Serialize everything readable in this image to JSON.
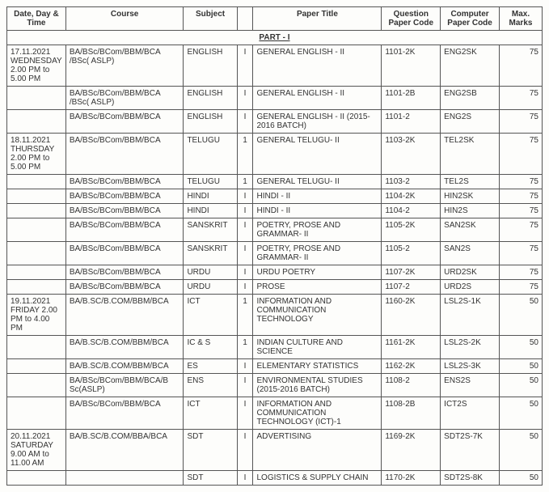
{
  "headers": {
    "date": "Date,\nDay & Time",
    "course": "Course",
    "subject": "Subject",
    "sem": "",
    "title": "Paper Title",
    "qpc": "Question Paper Code",
    "cpc": "Computer Paper Code",
    "marks": "Max. Marks"
  },
  "part_label": "PART - I",
  "rows": [
    {
      "date": "17.11.2021 WEDNESDAY 2.00 PM to 5.00 PM",
      "course": "BA/BSc/BCom/BBM/BCA /BSc( ASLP)",
      "subject": "ENGLISH",
      "sem": "I",
      "title": "GENERAL ENGLISH - II",
      "qpc": "1101-2K",
      "cpc": "ENG2SK",
      "marks": "75"
    },
    {
      "date": "",
      "course": "BA/BSc/BCom/BBM/BCA /BSc( ASLP)",
      "subject": "ENGLISH",
      "sem": "I",
      "title": "GENERAL ENGLISH - II",
      "qpc": "1101-2B",
      "cpc": "ENG2SB",
      "marks": "75"
    },
    {
      "date": "",
      "course": "BA/BSc/BCom/BBM/BCA",
      "subject": "ENGLISH",
      "sem": "I",
      "title": "GENERAL ENGLISH - II (2015-2016 BATCH)",
      "qpc": "1101-2",
      "cpc": "ENG2S",
      "marks": "75"
    },
    {
      "date": "18.11.2021 THURSDAY 2.00 PM to 5.00 PM",
      "course": "BA/BSc/BCom/BBM/BCA",
      "subject": "TELUGU",
      "sem": "1",
      "title": "GENERAL TELUGU- II",
      "qpc": "1103-2K",
      "cpc": "TEL2SK",
      "marks": "75"
    },
    {
      "date": "",
      "course": "BA/BSc/BCom/BBM/BCA",
      "subject": "TELUGU",
      "sem": "1",
      "title": "GENERAL TELUGU- II",
      "qpc": "1103-2",
      "cpc": "TEL2S",
      "marks": "75"
    },
    {
      "date": "",
      "course": "BA/BSc/BCom/BBM/BCA",
      "subject": "HINDI",
      "sem": "I",
      "title": "HINDI - II",
      "qpc": "1104-2K",
      "cpc": "HIN2SK",
      "marks": "75"
    },
    {
      "date": "",
      "course": "BA/BSc/BCom/BBM/BCA",
      "subject": "HINDI",
      "sem": "I",
      "title": "HINDI - II",
      "qpc": "1104-2",
      "cpc": "HIN2S",
      "marks": "75"
    },
    {
      "date": "",
      "course": "BA/BSc/BCom/BBM/BCA",
      "subject": "SANSKRIT",
      "sem": "I",
      "title": "POETRY, PROSE AND GRAMMAR- II",
      "qpc": "1105-2K",
      "cpc": "SAN2SK",
      "marks": "75"
    },
    {
      "date": "",
      "course": "BA/BSc/BCom/BBM/BCA",
      "subject": "SANSKRIT",
      "sem": "I",
      "title": "POETRY, PROSE AND GRAMMAR- II",
      "qpc": "1105-2",
      "cpc": "SAN2S",
      "marks": "75"
    },
    {
      "date": "",
      "course": "BA/BSc/BCom/BBM/BCA",
      "subject": "URDU",
      "sem": "I",
      "title": "URDU POETRY",
      "qpc": "1107-2K",
      "cpc": "URD2SK",
      "marks": "75"
    },
    {
      "date": "",
      "course": "BA/BSc/BCom/BBM/BCA",
      "subject": "URDU",
      "sem": "I",
      "title": "PROSE",
      "qpc": "1107-2",
      "cpc": "URD2S",
      "marks": "75"
    },
    {
      "date": "19.11.2021 FRIDAY 2.00 PM to 4.00 PM",
      "course": "BA/B.SC/B.COM/BBM/BCA",
      "subject": "ICT",
      "sem": "1",
      "title": "INFORMATION AND COMMUNICATION TECHNOLOGY",
      "qpc": "1160-2K",
      "cpc": "LSL2S-1K",
      "marks": "50"
    },
    {
      "date": "",
      "course": "BA/B.SC/B.COM/BBM/BCA",
      "subject": "IC & S",
      "sem": "1",
      "title": "INDIAN CULTURE AND SCIENCE",
      "qpc": "1161-2K",
      "cpc": "LSL2S-2K",
      "marks": "50"
    },
    {
      "date": "",
      "course": "BA/B.SC/B.COM/BBM/BCA",
      "subject": "ES",
      "sem": "I",
      "title": "ELEMENTARY STATISTICS",
      "qpc": "1162-2K",
      "cpc": "LSL2S-3K",
      "marks": "50"
    },
    {
      "date": "",
      "course": "BA/BSc/BCom/BBM/BCA/B Sc(ASLP)",
      "subject": "ENS",
      "sem": "I",
      "title": "ENVIRONMENTAL STUDIES (2015-2016 BATCH)",
      "qpc": "1108-2",
      "cpc": "ENS2S",
      "marks": "50"
    },
    {
      "date": "",
      "course": "BA/BSc/BCom/BBM/BCA",
      "subject": "ICT",
      "sem": "I",
      "title": "INFORMATION AND COMMUNICATION TECHNOLOGY (ICT)-1",
      "qpc": "1108-2B",
      "cpc": "ICT2S",
      "marks": "50"
    },
    {
      "date": "20.11.2021 SATURDAY 9.00 AM to 11.00 AM",
      "course": "BA/B.SC/B.COM/BBA/BCA",
      "subject": "SDT",
      "sem": "I",
      "title": "ADVERTISING",
      "qpc": "1169-2K",
      "cpc": "SDT2S-7K",
      "marks": "50"
    },
    {
      "date": "",
      "course": "",
      "subject": "SDT",
      "sem": "I",
      "title": "LOGISTICS & SUPPLY CHAIN",
      "qpc": "1170-2K",
      "cpc": "SDT2S-8K",
      "marks": "50"
    }
  ]
}
